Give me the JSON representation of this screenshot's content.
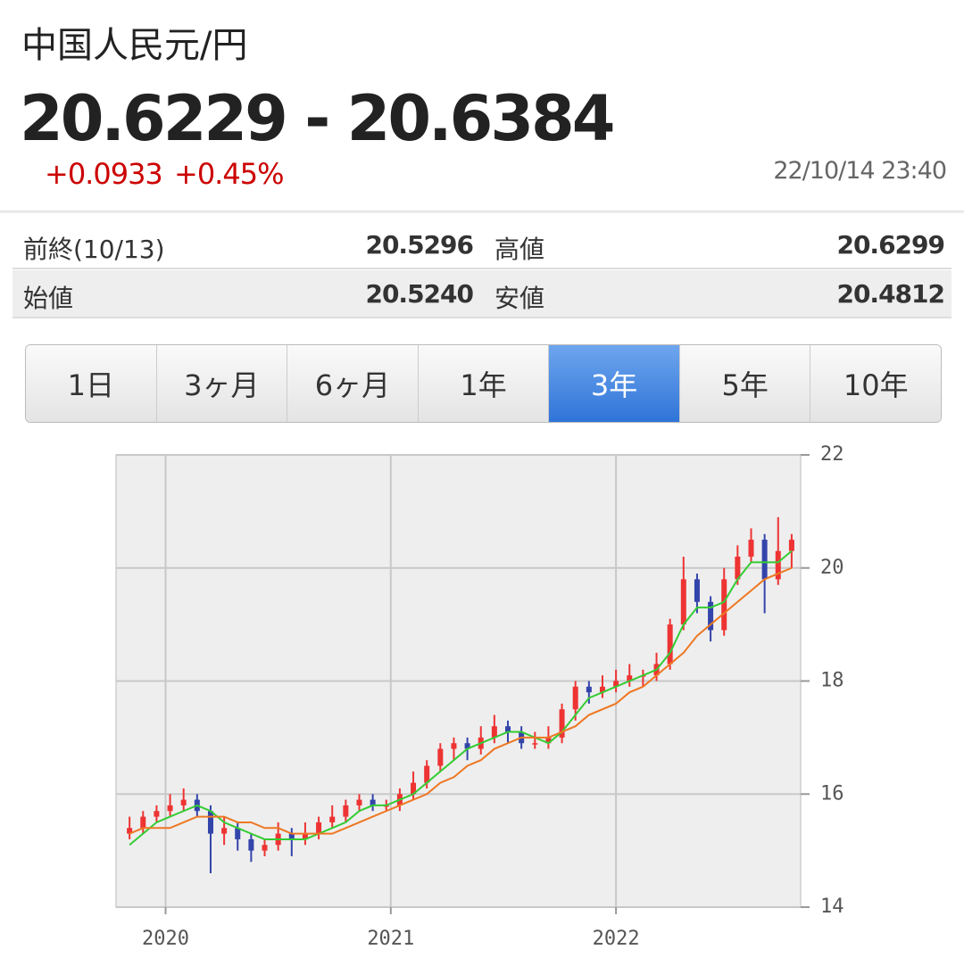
{
  "header": {
    "title": "中国人民元/円",
    "price": "20.6229 - 20.6384",
    "change": "+0.0933",
    "change_pct": "+0.45%",
    "timestamp": "22/10/14 23:40"
  },
  "table": {
    "rows": [
      [
        "前終(10/13)",
        "20.5296",
        "高値",
        "20.6299"
      ],
      [
        "始値",
        "20.5240",
        "安値",
        "20.4812"
      ]
    ]
  },
  "tabs": {
    "items": [
      "1日",
      "3ヶ月",
      "6ヶ月",
      "1年",
      "3年",
      "5年",
      "10年"
    ],
    "active": 4
  },
  "chart_data": {
    "type": "candlestick",
    "x": [
      2019.84,
      2019.9,
      2019.96,
      2020.02,
      2020.08,
      2020.14,
      2020.2,
      2020.26,
      2020.32,
      2020.38,
      2020.44,
      2020.5,
      2020.56,
      2020.62,
      2020.68,
      2020.74,
      2020.8,
      2020.86,
      2020.92,
      2020.98,
      2021.04,
      2021.1,
      2021.16,
      2021.22,
      2021.28,
      2021.34,
      2021.4,
      2021.46,
      2021.52,
      2021.58,
      2021.64,
      2021.7,
      2021.76,
      2021.82,
      2021.88,
      2021.94,
      2022.0,
      2022.06,
      2022.12,
      2022.18,
      2022.24,
      2022.3,
      2022.36,
      2022.42,
      2022.48,
      2022.54,
      2022.6,
      2022.66,
      2022.72,
      2022.78
    ],
    "open": [
      15.3,
      15.4,
      15.6,
      15.7,
      15.8,
      15.9,
      15.7,
      15.3,
      15.4,
      15.2,
      15.0,
      15.1,
      15.3,
      15.2,
      15.3,
      15.5,
      15.6,
      15.8,
      15.9,
      15.8,
      15.8,
      16.0,
      16.2,
      16.5,
      16.8,
      16.9,
      16.8,
      17.0,
      17.2,
      17.1,
      16.9,
      16.9,
      17.0,
      17.5,
      17.9,
      17.8,
      17.9,
      18.0,
      18.1,
      18.1,
      18.3,
      19.0,
      19.8,
      19.4,
      18.9,
      19.8,
      20.2,
      20.5,
      19.8,
      20.3
    ],
    "high": [
      15.6,
      15.7,
      15.8,
      16.0,
      16.1,
      16.0,
      15.8,
      15.6,
      15.5,
      15.3,
      15.2,
      15.5,
      15.4,
      15.5,
      15.6,
      15.8,
      15.9,
      16.0,
      16.0,
      15.9,
      16.1,
      16.4,
      16.6,
      16.9,
      17.0,
      17.0,
      17.2,
      17.4,
      17.3,
      17.2,
      17.1,
      17.2,
      17.6,
      18.0,
      18.0,
      18.1,
      18.2,
      18.3,
      18.2,
      18.5,
      19.1,
      20.2,
      19.9,
      19.5,
      20.0,
      20.4,
      20.7,
      20.6,
      20.9,
      20.6
    ],
    "low": [
      15.2,
      15.3,
      15.5,
      15.6,
      15.7,
      15.6,
      14.6,
      15.1,
      15.0,
      14.8,
      14.9,
      15.0,
      14.9,
      15.1,
      15.2,
      15.4,
      15.5,
      15.7,
      15.7,
      15.7,
      15.7,
      15.9,
      16.1,
      16.4,
      16.6,
      16.6,
      16.7,
      16.9,
      16.9,
      16.8,
      16.8,
      16.8,
      16.9,
      17.3,
      17.6,
      17.7,
      17.8,
      17.9,
      17.9,
      18.0,
      18.2,
      18.9,
      19.2,
      18.7,
      18.8,
      19.7,
      20.1,
      19.2,
      19.7,
      20.0
    ],
    "close": [
      15.4,
      15.6,
      15.7,
      15.8,
      15.9,
      15.7,
      15.3,
      15.4,
      15.2,
      15.0,
      15.1,
      15.3,
      15.2,
      15.3,
      15.5,
      15.6,
      15.8,
      15.9,
      15.8,
      15.8,
      16.0,
      16.2,
      16.5,
      16.8,
      16.9,
      16.8,
      17.0,
      17.2,
      17.1,
      16.9,
      16.9,
      17.0,
      17.5,
      17.9,
      17.8,
      17.9,
      18.0,
      18.1,
      18.1,
      18.3,
      19.0,
      19.8,
      19.4,
      18.9,
      19.8,
      20.2,
      20.5,
      19.8,
      20.3,
      20.5
    ],
    "up_color": "#ee3333",
    "down_color": "#3344aa",
    "lines": [
      {
        "color": "#33cc33",
        "values": [
          15.1,
          15.3,
          15.5,
          15.6,
          15.7,
          15.8,
          15.7,
          15.5,
          15.4,
          15.3,
          15.2,
          15.2,
          15.2,
          15.2,
          15.3,
          15.4,
          15.5,
          15.7,
          15.8,
          15.8,
          15.9,
          16.0,
          16.2,
          16.4,
          16.6,
          16.8,
          16.9,
          17.0,
          17.1,
          17.1,
          17.0,
          16.9,
          17.1,
          17.4,
          17.7,
          17.8,
          17.9,
          18.0,
          18.1,
          18.2,
          18.5,
          19.0,
          19.3,
          19.3,
          19.4,
          19.8,
          20.1,
          20.1,
          20.1,
          20.3
        ]
      },
      {
        "color": "#ee7722",
        "values": [
          15.3,
          15.4,
          15.4,
          15.4,
          15.5,
          15.6,
          15.6,
          15.6,
          15.5,
          15.5,
          15.4,
          15.4,
          15.3,
          15.3,
          15.3,
          15.3,
          15.4,
          15.5,
          15.6,
          15.7,
          15.8,
          15.9,
          16.0,
          16.2,
          16.3,
          16.5,
          16.6,
          16.8,
          16.9,
          17.0,
          17.0,
          17.0,
          17.1,
          17.2,
          17.4,
          17.5,
          17.6,
          17.8,
          17.9,
          18.1,
          18.3,
          18.5,
          18.8,
          19.0,
          19.2,
          19.4,
          19.6,
          19.8,
          19.9,
          20.0
        ]
      }
    ],
    "xlim": [
      2019.78,
      2022.82
    ],
    "xticks": [
      2020,
      2021,
      2022
    ],
    "ylim": [
      14,
      22
    ],
    "yticks": [
      14,
      16,
      18,
      20,
      22
    ],
    "grid": true
  }
}
